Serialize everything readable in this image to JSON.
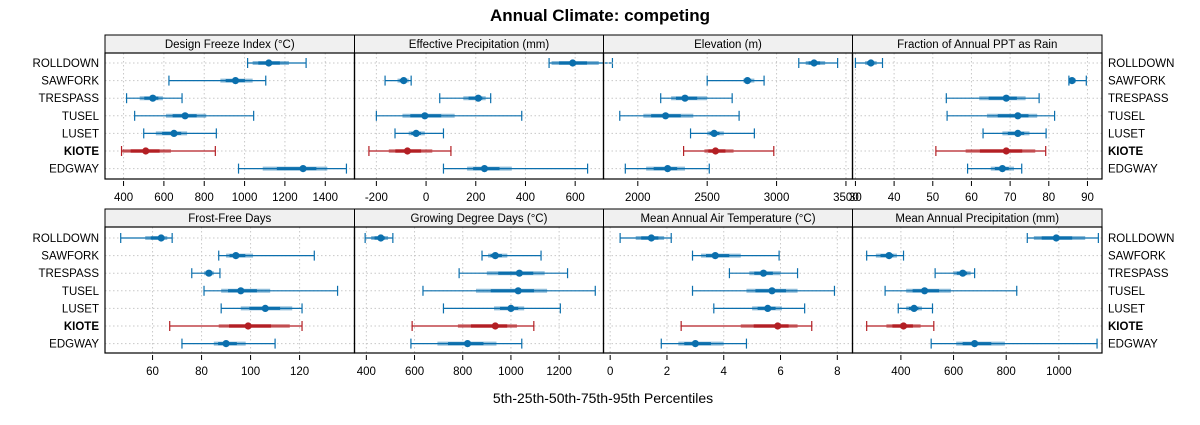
{
  "chart_data": {
    "type": "dot-interval",
    "title": "Annual Climate: competing",
    "xlabel": "5th-25th-50th-75th-95th Percentiles",
    "sites": [
      "ROLLDOWN",
      "SAWFORK",
      "TRESPASS",
      "TUSEL",
      "LUSET",
      "KIOTE",
      "EDGWAY"
    ],
    "highlight_site": "KIOTE",
    "colors": {
      "default": "#0b6fad",
      "highlight": "#b31f24",
      "strip": "#f0f0f0",
      "grid": "#c8c8c8"
    },
    "legend_placement": "none",
    "grid": true,
    "panels": [
      {
        "name": "Design Freeze Index (°C)",
        "xlim": [
          313,
          1540
        ],
        "ticks": [
          400,
          600,
          800,
          1000,
          1200,
          1400
        ],
        "tick_labels": [
          "400",
          "600",
          "800",
          "1000",
          "1200",
          "1400"
        ],
        "series": [
          {
            "site": "ROLLDOWN",
            "p5": 1015,
            "p25": 1040,
            "p50": 1120,
            "p75": 1220,
            "p95": 1305
          },
          {
            "site": "SAWFORK",
            "p5": 625,
            "p25": 880,
            "p50": 955,
            "p75": 1040,
            "p95": 1105
          },
          {
            "site": "TRESPASS",
            "p5": 415,
            "p25": 480,
            "p50": 545,
            "p75": 595,
            "p95": 690
          },
          {
            "site": "TUSEL",
            "p5": 455,
            "p25": 610,
            "p50": 705,
            "p75": 810,
            "p95": 1045
          },
          {
            "site": "LUSET",
            "p5": 500,
            "p25": 560,
            "p50": 650,
            "p75": 715,
            "p95": 860
          },
          {
            "site": "KIOTE",
            "p5": 390,
            "p25": 395,
            "p50": 510,
            "p75": 635,
            "p95": 855
          },
          {
            "site": "EDGWAY",
            "p5": 970,
            "p25": 1090,
            "p50": 1290,
            "p75": 1410,
            "p95": 1505
          }
        ]
      },
      {
        "name": "Effective Precipitation (mm)",
        "xlim": [
          -284,
          710
        ],
        "ticks": [
          -200,
          0,
          200,
          400,
          600
        ],
        "tick_labels": [
          "-200",
          "0",
          "200",
          "400",
          "600"
        ],
        "series": [
          {
            "site": "ROLLDOWN",
            "p5": 495,
            "p25": 505,
            "p50": 590,
            "p75": 695,
            "p95": 750
          },
          {
            "site": "SAWFORK",
            "p5": -165,
            "p25": -115,
            "p50": -90,
            "p75": -70,
            "p95": -60
          },
          {
            "site": "TRESPASS",
            "p5": 55,
            "p25": 150,
            "p50": 210,
            "p75": 240,
            "p95": 260
          },
          {
            "site": "TUSEL",
            "p5": -200,
            "p25": -95,
            "p50": -5,
            "p75": 115,
            "p95": 385
          },
          {
            "site": "LUSET",
            "p5": -125,
            "p25": -70,
            "p50": -40,
            "p75": -5,
            "p95": 70
          },
          {
            "site": "KIOTE",
            "p5": -230,
            "p25": -150,
            "p50": -75,
            "p75": 25,
            "p95": 100
          },
          {
            "site": "EDGWAY",
            "p5": 70,
            "p25": 165,
            "p50": 235,
            "p75": 345,
            "p95": 650
          }
        ]
      },
      {
        "name": "Elevation (m)",
        "xlim": [
          1760,
          3540
        ],
        "ticks": [
          2000,
          2500,
          3000,
          3500
        ],
        "tick_labels": [
          "2000",
          "2500",
          "3000",
          "3500"
        ],
        "series": [
          {
            "site": "ROLLDOWN",
            "p5": 3160,
            "p25": 3210,
            "p50": 3270,
            "p75": 3350,
            "p95": 3440
          },
          {
            "site": "SAWFORK",
            "p5": 2500,
            "p25": 2760,
            "p50": 2790,
            "p75": 2840,
            "p95": 2910
          },
          {
            "site": "TRESPASS",
            "p5": 2165,
            "p25": 2240,
            "p50": 2340,
            "p75": 2500,
            "p95": 2680
          },
          {
            "site": "TUSEL",
            "p5": 1870,
            "p25": 2040,
            "p50": 2200,
            "p75": 2400,
            "p95": 2730
          },
          {
            "site": "LUSET",
            "p5": 2380,
            "p25": 2500,
            "p50": 2550,
            "p75": 2620,
            "p95": 2840
          },
          {
            "site": "KIOTE",
            "p5": 2330,
            "p25": 2480,
            "p50": 2560,
            "p75": 2690,
            "p95": 2980
          },
          {
            "site": "EDGWAY",
            "p5": 1910,
            "p25": 2060,
            "p50": 2215,
            "p75": 2340,
            "p95": 2515
          }
        ]
      },
      {
        "name": "Fraction of Annual PPT as Rain",
        "xlim": [
          29.5,
          93.5
        ],
        "ticks": [
          30,
          40,
          50,
          60,
          70,
          80,
          90
        ],
        "tick_labels": [
          "30",
          "40",
          "50",
          "60",
          "70",
          "80",
          "90"
        ],
        "series": [
          {
            "site": "ROLLDOWN",
            "p5": 30,
            "p25": 32.5,
            "p50": 34,
            "p75": 35.5,
            "p95": 37
          },
          {
            "site": "SAWFORK",
            "p5": 85.2,
            "p25": 85.5,
            "p50": 86,
            "p75": 87,
            "p95": 89.7
          },
          {
            "site": "TRESPASS",
            "p5": 53.5,
            "p25": 62,
            "p50": 69,
            "p75": 74,
            "p95": 77.5
          },
          {
            "site": "TUSEL",
            "p5": 53.7,
            "p25": 64,
            "p50": 72,
            "p75": 77,
            "p95": 81.5
          },
          {
            "site": "LUSET",
            "p5": 63,
            "p25": 68,
            "p50": 72,
            "p75": 75,
            "p95": 79.3
          },
          {
            "site": "KIOTE",
            "p5": 50.8,
            "p25": 58.5,
            "p50": 69,
            "p75": 76.5,
            "p95": 79.2
          },
          {
            "site": "EDGWAY",
            "p5": 59,
            "p25": 65,
            "p50": 68,
            "p75": 71,
            "p95": 73
          }
        ]
      },
      {
        "name": "Frost-Free Days",
        "xlim": [
          41,
          142
        ],
        "ticks": [
          60,
          80,
          100,
          120
        ],
        "tick_labels": [
          "60",
          "80",
          "100",
          "120"
        ],
        "series": [
          {
            "site": "ROLLDOWN",
            "p5": 47,
            "p25": 57,
            "p50": 63.5,
            "p75": 66,
            "p95": 68
          },
          {
            "site": "SAWFORK",
            "p5": 87,
            "p25": 90,
            "p50": 94,
            "p75": 101,
            "p95": 126
          },
          {
            "site": "TRESPASS",
            "p5": 76,
            "p25": 81,
            "p50": 83,
            "p75": 85,
            "p95": 87.5
          },
          {
            "site": "TUSEL",
            "p5": 81,
            "p25": 88,
            "p50": 96,
            "p75": 108,
            "p95": 135.5
          },
          {
            "site": "LUSET",
            "p5": 88,
            "p25": 96,
            "p50": 106,
            "p75": 117,
            "p95": 121
          },
          {
            "site": "KIOTE",
            "p5": 67,
            "p25": 87,
            "p50": 99,
            "p75": 116,
            "p95": 121
          },
          {
            "site": "EDGWAY",
            "p5": 72,
            "p25": 85,
            "p50": 90,
            "p75": 98,
            "p95": 110
          }
        ]
      },
      {
        "name": "Growing Degree Days (°C)",
        "xlim": [
          355,
          1380
        ],
        "ticks": [
          400,
          600,
          800,
          1000,
          1200
        ],
        "tick_labels": [
          "400",
          "600",
          "800",
          "1000",
          "1200"
        ],
        "series": [
          {
            "site": "ROLLDOWN",
            "p5": 395,
            "p25": 420,
            "p50": 460,
            "p75": 490,
            "p95": 510
          },
          {
            "site": "SAWFORK",
            "p5": 880,
            "p25": 905,
            "p50": 935,
            "p75": 985,
            "p95": 1125
          },
          {
            "site": "TRESPASS",
            "p5": 785,
            "p25": 900,
            "p50": 1035,
            "p75": 1140,
            "p95": 1235
          },
          {
            "site": "TUSEL",
            "p5": 635,
            "p25": 855,
            "p50": 1030,
            "p75": 1150,
            "p95": 1350
          },
          {
            "site": "LUSET",
            "p5": 720,
            "p25": 930,
            "p50": 1000,
            "p75": 1055,
            "p95": 1205
          },
          {
            "site": "KIOTE",
            "p5": 590,
            "p25": 780,
            "p50": 935,
            "p75": 1025,
            "p95": 1095
          },
          {
            "site": "EDGWAY",
            "p5": 585,
            "p25": 695,
            "p50": 820,
            "p75": 940,
            "p95": 1045
          }
        ]
      },
      {
        "name": "Mean Annual Air Temperature (°C)",
        "xlim": [
          -0.2,
          8.5
        ],
        "ticks": [
          0,
          2,
          4,
          6,
          8
        ],
        "tick_labels": [
          "0",
          "2",
          "4",
          "6",
          "8"
        ],
        "series": [
          {
            "site": "ROLLDOWN",
            "p5": 0.35,
            "p25": 0.9,
            "p50": 1.45,
            "p75": 1.9,
            "p95": 2.15
          },
          {
            "site": "SAWFORK",
            "p5": 2.9,
            "p25": 3.2,
            "p50": 3.7,
            "p75": 4.6,
            "p95": 5.95
          },
          {
            "site": "TRESPASS",
            "p5": 4.2,
            "p25": 4.9,
            "p50": 5.4,
            "p75": 6.0,
            "p95": 6.6
          },
          {
            "site": "TUSEL",
            "p5": 2.9,
            "p25": 4.8,
            "p50": 5.7,
            "p75": 6.6,
            "p95": 7.9
          },
          {
            "site": "LUSET",
            "p5": 3.65,
            "p25": 5.0,
            "p50": 5.55,
            "p75": 6.05,
            "p95": 6.85
          },
          {
            "site": "KIOTE",
            "p5": 2.5,
            "p25": 4.6,
            "p50": 5.9,
            "p75": 6.6,
            "p95": 7.1
          },
          {
            "site": "EDGWAY",
            "p5": 1.8,
            "p25": 2.4,
            "p50": 3.0,
            "p75": 4.0,
            "p95": 4.8
          }
        ]
      },
      {
        "name": "Mean Annual Precipitation (mm)",
        "xlim": [
          220,
          1160
        ],
        "ticks": [
          400,
          600,
          800,
          1000
        ],
        "tick_labels": [
          "400",
          "600",
          "800",
          "1000"
        ],
        "series": [
          {
            "site": "ROLLDOWN",
            "p5": 880,
            "p25": 905,
            "p50": 990,
            "p75": 1100,
            "p95": 1150
          },
          {
            "site": "SAWFORK",
            "p5": 270,
            "p25": 305,
            "p50": 355,
            "p75": 385,
            "p95": 410
          },
          {
            "site": "TRESPASS",
            "p5": 530,
            "p25": 600,
            "p50": 635,
            "p75": 665,
            "p95": 680
          },
          {
            "site": "TUSEL",
            "p5": 340,
            "p25": 420,
            "p50": 490,
            "p75": 590,
            "p95": 840
          },
          {
            "site": "LUSET",
            "p5": 390,
            "p25": 420,
            "p50": 450,
            "p75": 480,
            "p95": 520
          },
          {
            "site": "KIOTE",
            "p5": 270,
            "p25": 345,
            "p50": 410,
            "p75": 475,
            "p95": 525
          },
          {
            "site": "EDGWAY",
            "p5": 515,
            "p25": 610,
            "p50": 680,
            "p75": 795,
            "p95": 1145
          }
        ]
      }
    ]
  }
}
